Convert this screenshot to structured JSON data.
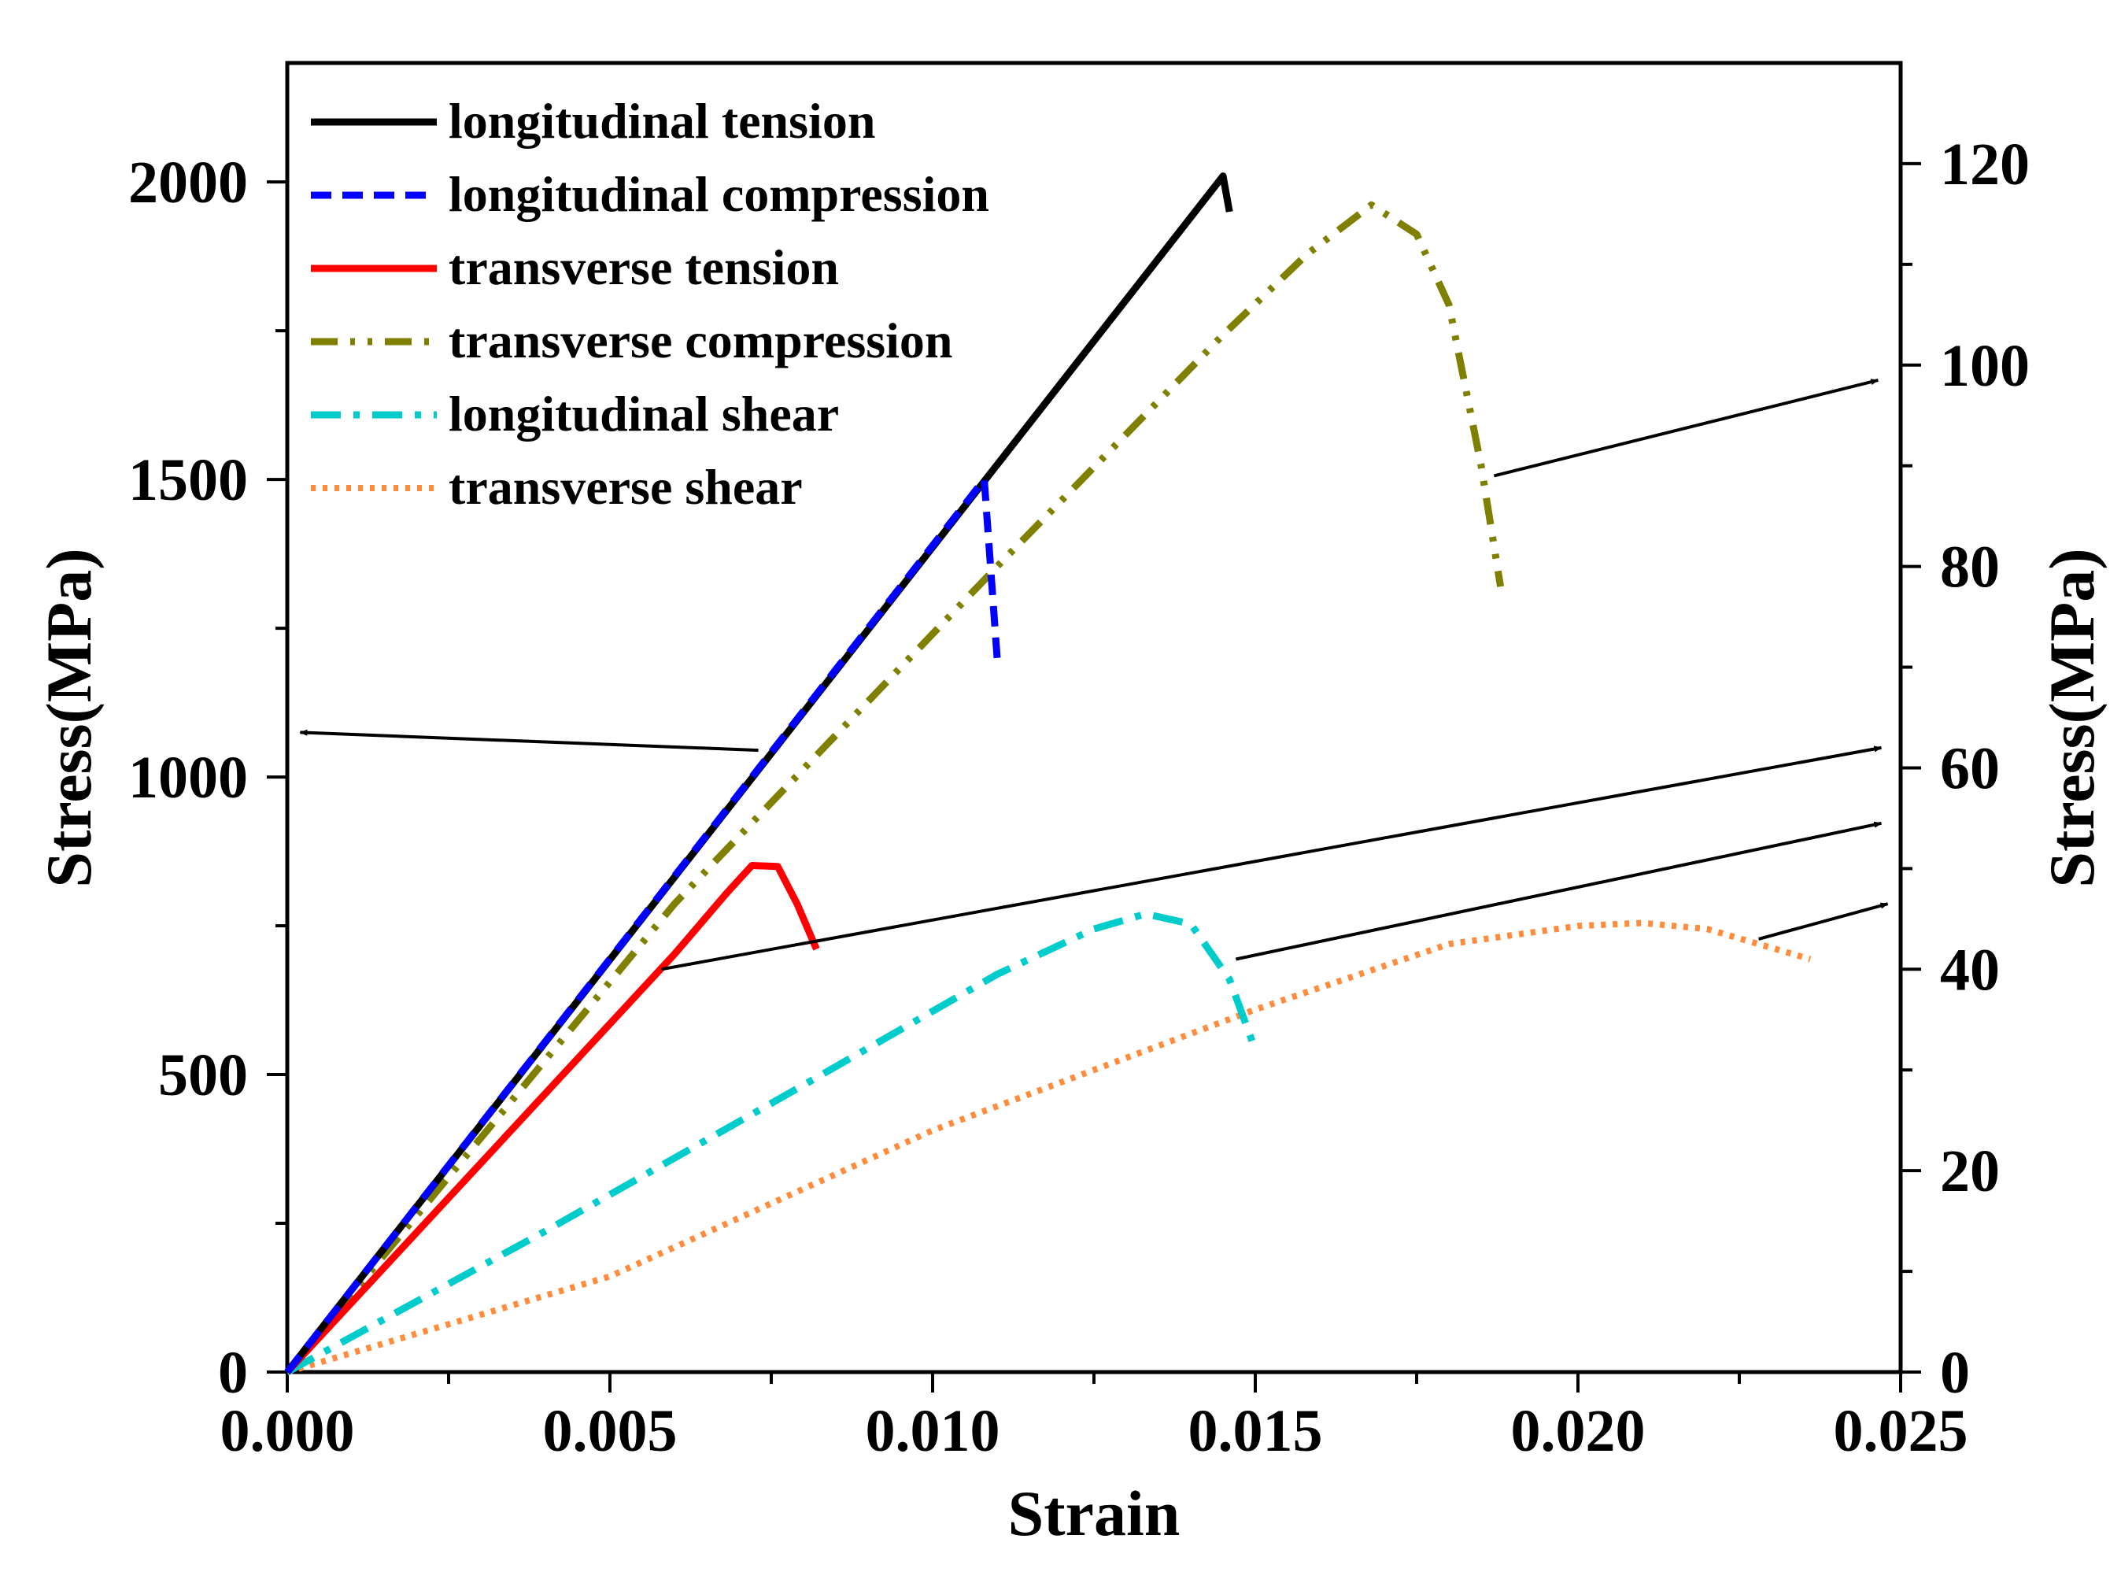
{
  "chart_data": {
    "type": "line",
    "xlabel": "Strain",
    "ylabel_left": "Stress(MPa)",
    "ylabel_right": "Stress(MPa)",
    "xlim": [
      0,
      0.025
    ],
    "ylim_left": [
      0,
      2200
    ],
    "ylim_right": [
      0,
      130
    ],
    "x_ticks": [
      "0.000",
      "0.005",
      "0.010",
      "0.015",
      "0.020",
      "0.025"
    ],
    "y_left_ticks": [
      "0",
      "500",
      "1000",
      "1500",
      "2000"
    ],
    "y_right_ticks": [
      "0",
      "20",
      "40",
      "60",
      "80",
      "100",
      "120"
    ],
    "grid": false,
    "legend_position": "top-left",
    "series": [
      {
        "name": "longitudinal tension",
        "axis": "left",
        "color": "#000000",
        "style": "solid",
        "x": [
          0,
          0.0145,
          0.0146
        ],
        "y": [
          0,
          2010,
          1950
        ]
      },
      {
        "name": "longitudinal compression",
        "axis": "left",
        "color": "#0000ff",
        "style": "dash",
        "x": [
          0,
          0.0108,
          0.011
        ],
        "y": [
          0,
          1500,
          1200
        ]
      },
      {
        "name": "transverse tension",
        "axis": "right",
        "color": "#ff0000",
        "style": "solid",
        "x": [
          0,
          0.006,
          0.0068,
          0.0072,
          0.0076,
          0.0079,
          0.0082
        ],
        "y": [
          0,
          41.5,
          47.5,
          50.3,
          50.2,
          46.5,
          42
        ]
      },
      {
        "name": "transverse compression",
        "axis": "right",
        "color": "#808000",
        "style": "dash-dot-dot",
        "x": [
          0,
          0.006,
          0.011,
          0.0145,
          0.0158,
          0.0168,
          0.0175,
          0.018,
          0.0185,
          0.0188
        ],
        "y": [
          0,
          46.5,
          80,
          103,
          111,
          115.9,
          113,
          106,
          90,
          78
        ]
      },
      {
        "name": "longitudinal shear",
        "axis": "right",
        "color": "#00cccc",
        "style": "dash-dot",
        "x": [
          0,
          0.004,
          0.008,
          0.011,
          0.0125,
          0.0133,
          0.014,
          0.0146,
          0.015
        ],
        "y": [
          0,
          14,
          28.5,
          39.5,
          44,
          45.5,
          44.5,
          39,
          32
        ]
      },
      {
        "name": "transverse shear",
        "axis": "right",
        "color": "#ff8c3c",
        "style": "dot",
        "x": [
          0,
          0.005,
          0.01,
          0.015,
          0.018,
          0.02,
          0.021,
          0.022,
          0.0236
        ],
        "y": [
          0,
          9.5,
          24,
          36,
          42.5,
          44.3,
          44.6,
          44,
          41
        ]
      }
    ],
    "annotations": [
      {
        "type": "arrow",
        "points_to": "left axis",
        "from": [
          0.0073,
          1045
        ],
        "to": [
          0.0002,
          1075
        ],
        "from_axis": "left",
        "to_axis": "left"
      },
      {
        "type": "arrow",
        "points_to": "right axis",
        "from": [
          0.0187,
          89
        ],
        "to": [
          0.02465,
          98.5
        ],
        "from_axis": "right",
        "to_axis": "right"
      },
      {
        "type": "arrow",
        "points_to": "right axis",
        "from": [
          0.0058,
          40
        ],
        "to": [
          0.0247,
          62
        ],
        "from_axis": "right",
        "to_axis": "right"
      },
      {
        "type": "arrow",
        "points_to": "right axis",
        "from": [
          0.0147,
          41
        ],
        "to": [
          0.0247,
          54.5
        ],
        "from_axis": "right",
        "to_axis": "right"
      },
      {
        "type": "arrow",
        "points_to": "right axis",
        "from": [
          0.0228,
          43
        ],
        "to": [
          0.0248,
          46.5
        ],
        "from_axis": "right",
        "to_axis": "right"
      }
    ]
  }
}
